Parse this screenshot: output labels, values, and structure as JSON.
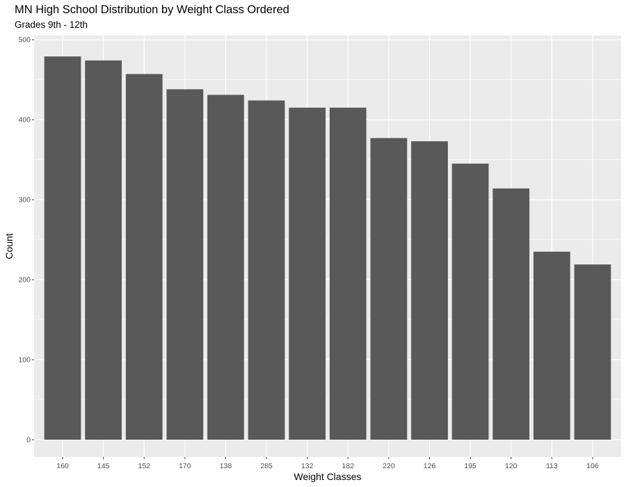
{
  "chart_data": {
    "type": "bar",
    "title": "MN High School Distribution by Weight Class Ordered",
    "subtitle": "Grades 9th - 12th",
    "xlabel": "Weight Classes",
    "ylabel": "Count",
    "categories": [
      "160",
      "145",
      "152",
      "170",
      "138",
      "285",
      "132",
      "182",
      "220",
      "126",
      "195",
      "120",
      "113",
      "106"
    ],
    "values": [
      479,
      474,
      457,
      438,
      431,
      424,
      415,
      415,
      377,
      373,
      345,
      314,
      235,
      219
    ],
    "ylim": [
      0,
      500
    ],
    "yticks": [
      0,
      100,
      200,
      300,
      400,
      500
    ],
    "grid": true,
    "colors": {
      "panel_background": "#ebebeb",
      "grid_major": "#ffffff",
      "bar_fill": "#595959",
      "tick_text": "#4d4d4d"
    }
  }
}
